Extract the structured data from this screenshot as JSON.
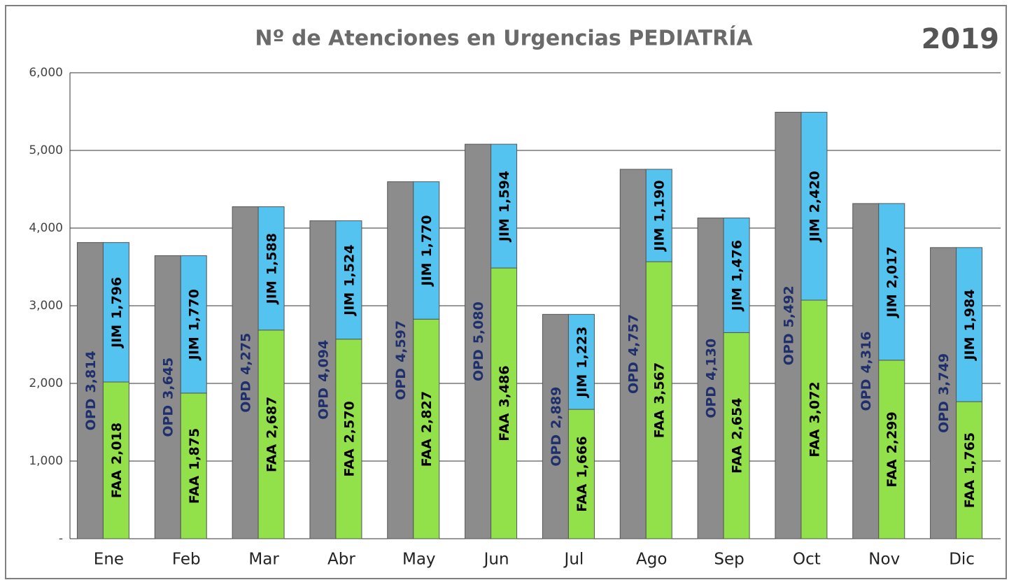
{
  "chart_data": {
    "type": "grouped_stacked_bar",
    "title": "Nº de Atenciones en Urgencias PEDIATRÍA",
    "subtitle": "2019",
    "categories": [
      "Ene",
      "Feb",
      "Mar",
      "Abr",
      "May",
      "Jun",
      "Jul",
      "Ago",
      "Sep",
      "Oct",
      "Nov",
      "Dic"
    ],
    "series": [
      {
        "name": "OPD",
        "color": "#8c8c8c",
        "stack": "total",
        "values": [
          3814,
          3645,
          4275,
          4094,
          4597,
          5080,
          2889,
          4757,
          4130,
          5492,
          4316,
          3749
        ],
        "value_labels": [
          "3,814",
          "3,645",
          "4,275",
          "4,094",
          "4,597",
          "5,080",
          "2,889",
          "4,757",
          "4,130",
          "5,492",
          "4,316",
          "3,749"
        ]
      },
      {
        "name": "FAA",
        "color": "#92e04a",
        "stack": "split",
        "values": [
          2018,
          1875,
          2687,
          2570,
          2827,
          3486,
          1666,
          3567,
          2654,
          3072,
          2299,
          1765
        ],
        "value_labels": [
          "2,018",
          "1,875",
          "2,687",
          "2,570",
          "2,827",
          "3,486",
          "1,666",
          "3,567",
          "2,654",
          "3,072",
          "2,299",
          "1,765"
        ]
      },
      {
        "name": "JIM",
        "color": "#55c3f0",
        "stack": "split",
        "values": [
          1796,
          1770,
          1588,
          1524,
          1770,
          1594,
          1223,
          1190,
          1476,
          2420,
          2017,
          1984
        ],
        "value_labels": [
          "1,796",
          "1,770",
          "1,588",
          "1,524",
          "1,770",
          "1,594",
          "1,223",
          "1,190",
          "1,476",
          "2,420",
          "2,017",
          "1,984"
        ]
      }
    ],
    "ylim": [
      0,
      6000
    ],
    "yticks": [
      {
        "value": 0,
        "label": "-"
      },
      {
        "value": 1000,
        "label": "1,000"
      },
      {
        "value": 2000,
        "label": "2,000"
      },
      {
        "value": 3000,
        "label": "3,000"
      },
      {
        "value": 4000,
        "label": "4,000"
      },
      {
        "value": 5000,
        "label": "5,000"
      },
      {
        "value": 6000,
        "label": "6,000"
      }
    ],
    "grid": true
  }
}
